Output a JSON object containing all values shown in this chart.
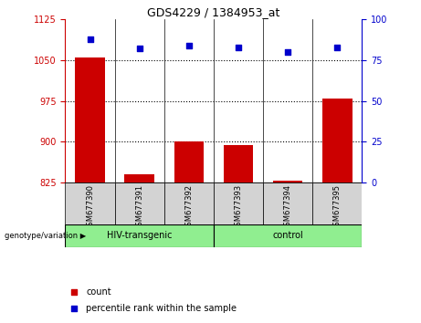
{
  "title": "GDS4229 / 1384953_at",
  "categories": [
    "GSM677390",
    "GSM677391",
    "GSM677392",
    "GSM677393",
    "GSM677394",
    "GSM677395"
  ],
  "bar_values": [
    1055,
    840,
    900,
    893,
    828,
    980
  ],
  "percentile_values": [
    88,
    82,
    84,
    83,
    80,
    83
  ],
  "ylim_left": [
    825,
    1125
  ],
  "ylim_right": [
    0,
    100
  ],
  "yticks_left": [
    825,
    900,
    975,
    1050,
    1125
  ],
  "yticks_right": [
    0,
    25,
    50,
    75,
    100
  ],
  "bar_color": "#cc0000",
  "dot_color": "#0000cc",
  "group1_label": "HIV-transgenic",
  "group2_label": "control",
  "group1_color": "#90ee90",
  "group2_color": "#90ee90",
  "group1_indices": [
    0,
    1,
    2
  ],
  "group2_indices": [
    3,
    4,
    5
  ],
  "legend_count_label": "count",
  "legend_pct_label": "percentile rank within the sample",
  "bar_bottom": 825,
  "gridline_values": [
    900,
    975,
    1050
  ],
  "fig_width": 4.61,
  "fig_height": 3.54
}
